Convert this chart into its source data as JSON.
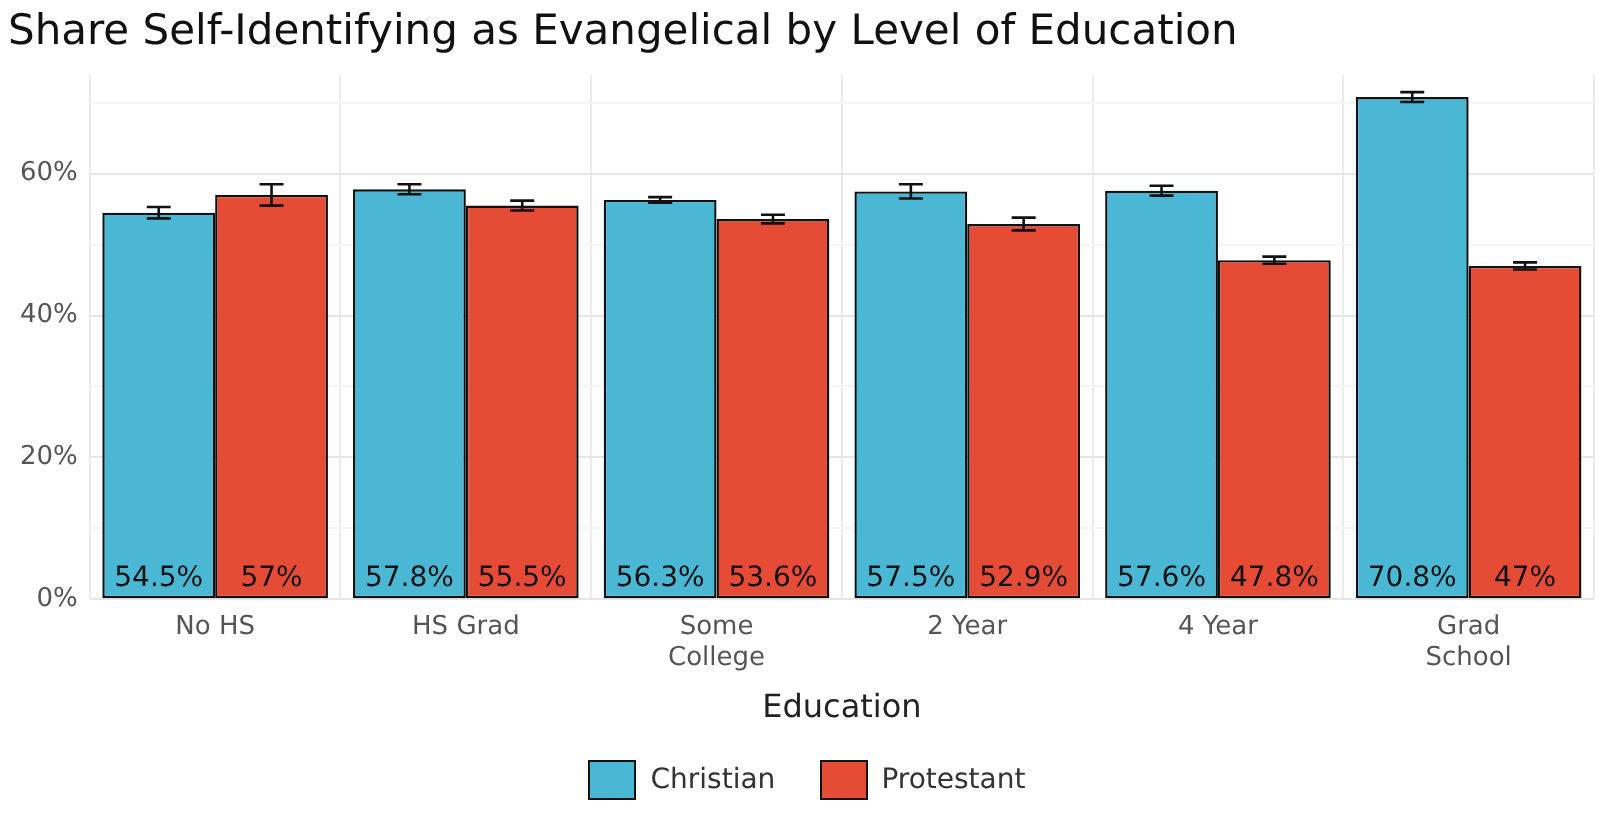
{
  "chart_data": {
    "type": "bar",
    "title": "Share Self-Identifying as Evangelical by Level of Education",
    "xlabel": "Education",
    "categories": [
      "No HS",
      "HS Grad",
      "Some College",
      "2 Year",
      "4 Year",
      "Grad School"
    ],
    "series": [
      {
        "name": "Christian",
        "color": "#4ab8d4",
        "values": [
          54.5,
          57.8,
          56.3,
          57.5,
          57.6,
          70.8
        ],
        "errors": [
          0.8,
          0.7,
          0.4,
          1.0,
          0.7,
          0.7
        ],
        "value_labels": [
          "54.5%",
          "57.8%",
          "56.3%",
          "57.5%",
          "57.6%",
          "70.8%"
        ]
      },
      {
        "name": "Protestant",
        "color": "#e64b35",
        "values": [
          57,
          55.5,
          53.6,
          52.9,
          47.8,
          47
        ],
        "errors": [
          1.5,
          0.7,
          0.6,
          0.9,
          0.5,
          0.5
        ],
        "value_labels": [
          "57%",
          "55.5%",
          "53.6%",
          "52.9%",
          "47.8%",
          "47%"
        ]
      }
    ],
    "ylim": [
      0,
      74
    ],
    "yticks": [
      {
        "value": 0,
        "label": "0%"
      },
      {
        "value": 10,
        "label": null
      },
      {
        "value": 20,
        "label": "20%"
      },
      {
        "value": 30,
        "label": null
      },
      {
        "value": 40,
        "label": "40%"
      },
      {
        "value": 50,
        "label": null
      },
      {
        "value": 60,
        "label": "60%"
      },
      {
        "value": 70,
        "label": null
      }
    ],
    "grid": true,
    "legend": "bottom"
  }
}
